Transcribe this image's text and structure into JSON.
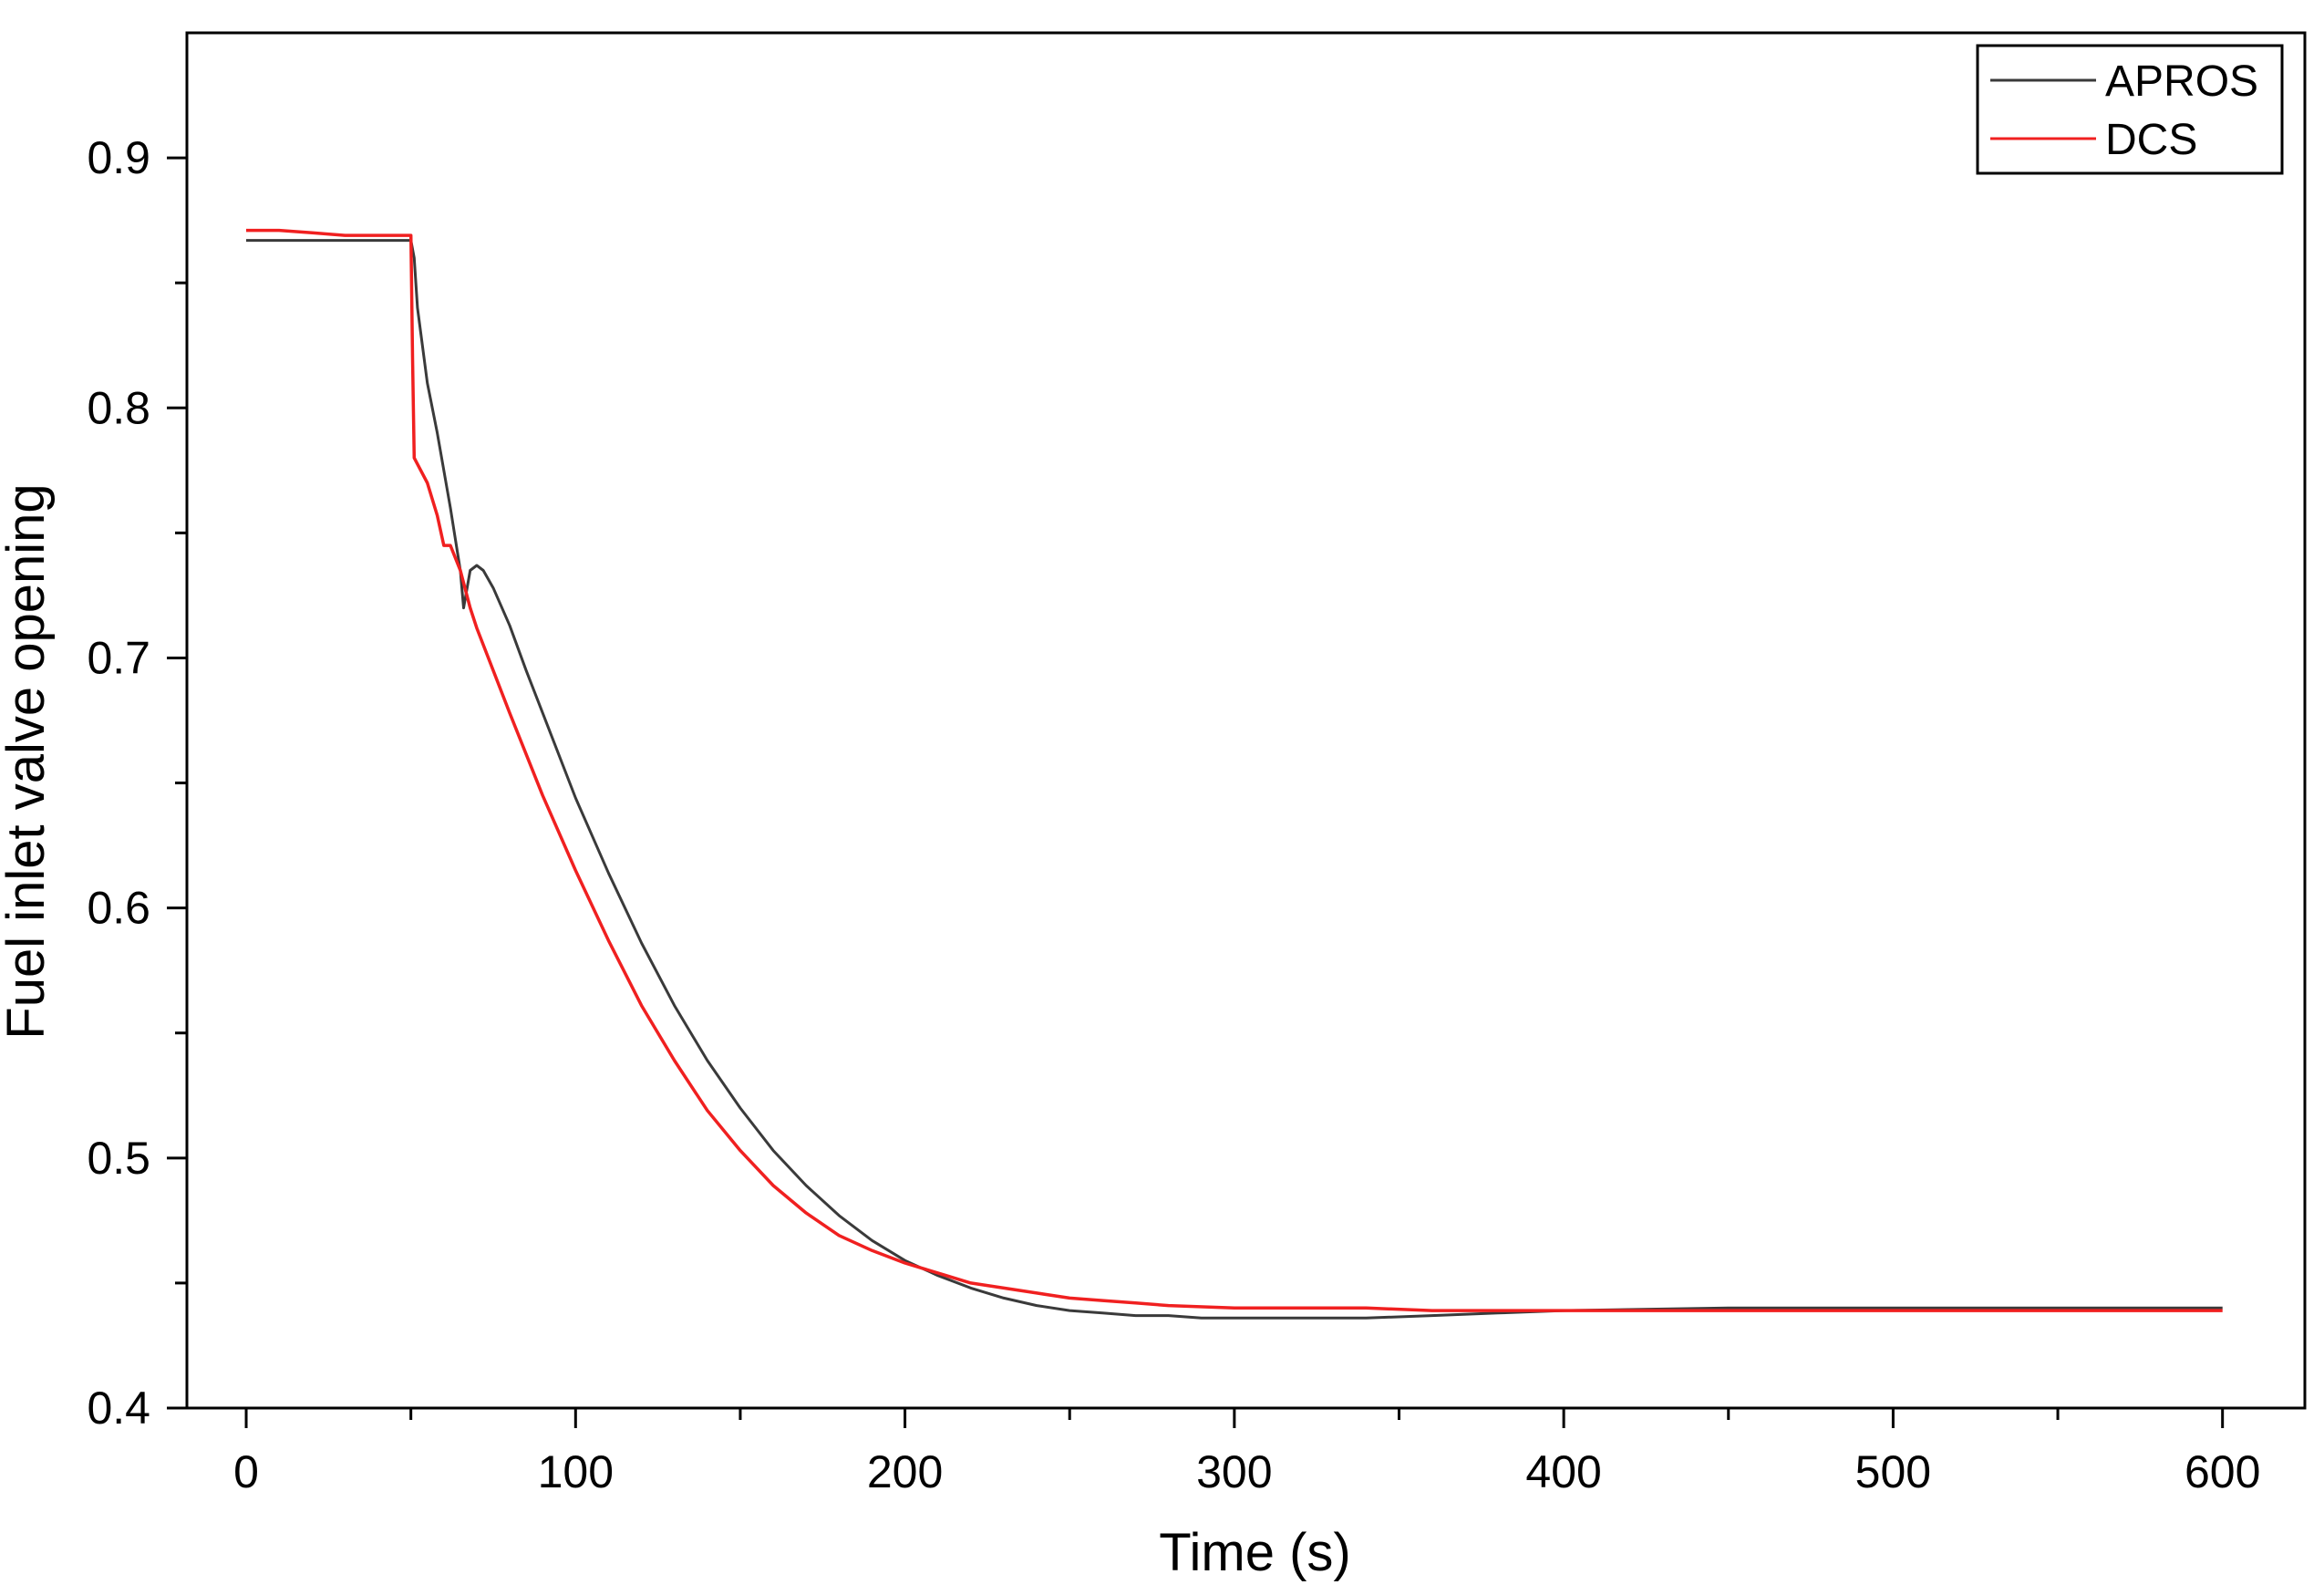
{
  "chart_data": {
    "type": "line",
    "xlabel": "Time (s)",
    "ylabel": "Fuel inlet valve opening",
    "xlim": [
      -18,
      625
    ],
    "ylim": [
      0.4,
      0.95
    ],
    "xticks": [
      "0",
      "100",
      "200",
      "300",
      "400",
      "500",
      "600"
    ],
    "yticks": [
      "0.4",
      "0.5",
      "0.6",
      "0.7",
      "0.8",
      "0.9"
    ],
    "legend_position": "top-right",
    "colors": {
      "APROS": "#3a3a3a",
      "DCS": "#f02020"
    },
    "series": [
      {
        "name": "APROS",
        "x": [
          0,
          10,
          20,
          30,
          40,
          49,
          50,
          51,
          52,
          55,
          58,
          62,
          65,
          66,
          68,
          70,
          72,
          75,
          80,
          85,
          90,
          100,
          110,
          120,
          130,
          140,
          150,
          160,
          170,
          180,
          190,
          200,
          210,
          220,
          230,
          240,
          250,
          260,
          270,
          280,
          290,
          300,
          320,
          340,
          360,
          380,
          400,
          450,
          500,
          550,
          600
        ],
        "y": [
          0.867,
          0.867,
          0.867,
          0.867,
          0.867,
          0.867,
          0.867,
          0.86,
          0.84,
          0.81,
          0.79,
          0.76,
          0.735,
          0.72,
          0.735,
          0.737,
          0.735,
          0.728,
          0.713,
          0.695,
          0.678,
          0.644,
          0.614,
          0.586,
          0.561,
          0.539,
          0.52,
          0.503,
          0.489,
          0.477,
          0.467,
          0.459,
          0.453,
          0.448,
          0.444,
          0.441,
          0.439,
          0.438,
          0.437,
          0.437,
          0.436,
          0.436,
          0.436,
          0.436,
          0.437,
          0.438,
          0.439,
          0.44,
          0.44,
          0.44,
          0.44
        ]
      },
      {
        "name": "DCS",
        "x": [
          0,
          10,
          20,
          30,
          40,
          49,
          50,
          50.5,
          51,
          53,
          55,
          58,
          60,
          62,
          65,
          68,
          70,
          75,
          80,
          90,
          100,
          110,
          120,
          130,
          140,
          150,
          160,
          170,
          180,
          190,
          200,
          210,
          220,
          230,
          240,
          250,
          260,
          270,
          280,
          300,
          320,
          340,
          360,
          380,
          400,
          450,
          500,
          550,
          600
        ],
        "y": [
          0.871,
          0.871,
          0.87,
          0.869,
          0.869,
          0.869,
          0.869,
          0.82,
          0.78,
          0.775,
          0.77,
          0.757,
          0.745,
          0.745,
          0.735,
          0.72,
          0.712,
          0.695,
          0.678,
          0.645,
          0.615,
          0.587,
          0.561,
          0.539,
          0.519,
          0.503,
          0.489,
          0.478,
          0.469,
          0.463,
          0.458,
          0.454,
          0.45,
          0.448,
          0.446,
          0.444,
          0.443,
          0.442,
          0.441,
          0.44,
          0.44,
          0.44,
          0.439,
          0.439,
          0.439,
          0.439,
          0.439,
          0.439,
          0.439
        ]
      }
    ]
  }
}
